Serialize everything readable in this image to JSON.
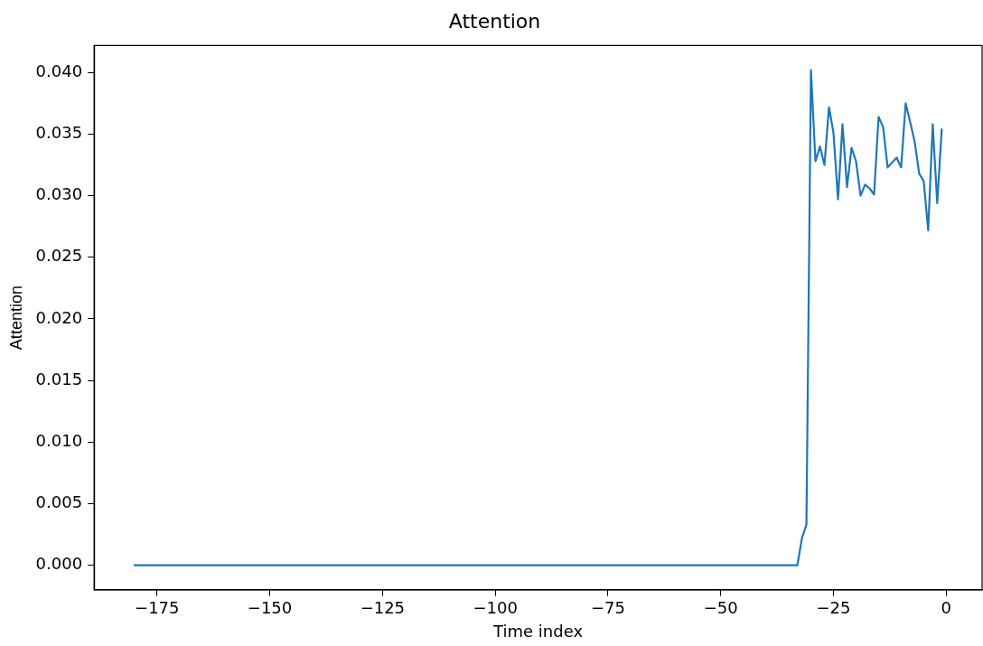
{
  "chart_data": {
    "type": "line",
    "title": "Attention",
    "xlabel": "Time index",
    "ylabel": "Attention",
    "series": [
      {
        "color": "#1f77b4",
        "x": [
          -180,
          -33,
          -32,
          -31,
          -30,
          -29,
          -28,
          -27,
          -26,
          -25,
          -24,
          -23,
          -22,
          -21,
          -20,
          -19,
          -18,
          -17,
          -16,
          -15,
          -14,
          -13,
          -12,
          -11,
          -10,
          -9,
          -8,
          -7,
          -6,
          -5,
          -4,
          -3,
          -2,
          -1
        ],
        "values": [
          0,
          0,
          0.0022,
          0.0033,
          0.0402,
          0.0328,
          0.034,
          0.0325,
          0.0372,
          0.0351,
          0.0297,
          0.0358,
          0.0307,
          0.0339,
          0.0328,
          0.03,
          0.0309,
          0.0306,
          0.0301,
          0.0364,
          0.0356,
          0.0323,
          0.0327,
          0.0331,
          0.0323,
          0.0375,
          0.036,
          0.0344,
          0.0318,
          0.0312,
          0.0272,
          0.0358,
          0.0294,
          0.0354
        ]
      }
    ],
    "xlim": [
      -188.95,
      7.95
    ],
    "ylim": [
      -0.002,
      0.0422
    ],
    "xticks": [
      {
        "value": -175,
        "label": "−175"
      },
      {
        "value": -150,
        "label": "−150"
      },
      {
        "value": -125,
        "label": "−125"
      },
      {
        "value": -100,
        "label": "−100"
      },
      {
        "value": -75,
        "label": "−75"
      },
      {
        "value": -50,
        "label": "−50"
      },
      {
        "value": -25,
        "label": "−25"
      },
      0
    ],
    "yticks": [
      {
        "value": 0,
        "label": "0.000"
      },
      0.005,
      {
        "value": 0.01,
        "label": "0.010"
      },
      0.015,
      {
        "value": 0.02,
        "label": "0.020"
      },
      0.025,
      {
        "value": 0.03,
        "label": "0.030"
      },
      0.035,
      {
        "value": 0.04,
        "label": "0.040"
      }
    ],
    "grid": false,
    "legend": false,
    "marker": "none",
    "line_style": "solid"
  }
}
